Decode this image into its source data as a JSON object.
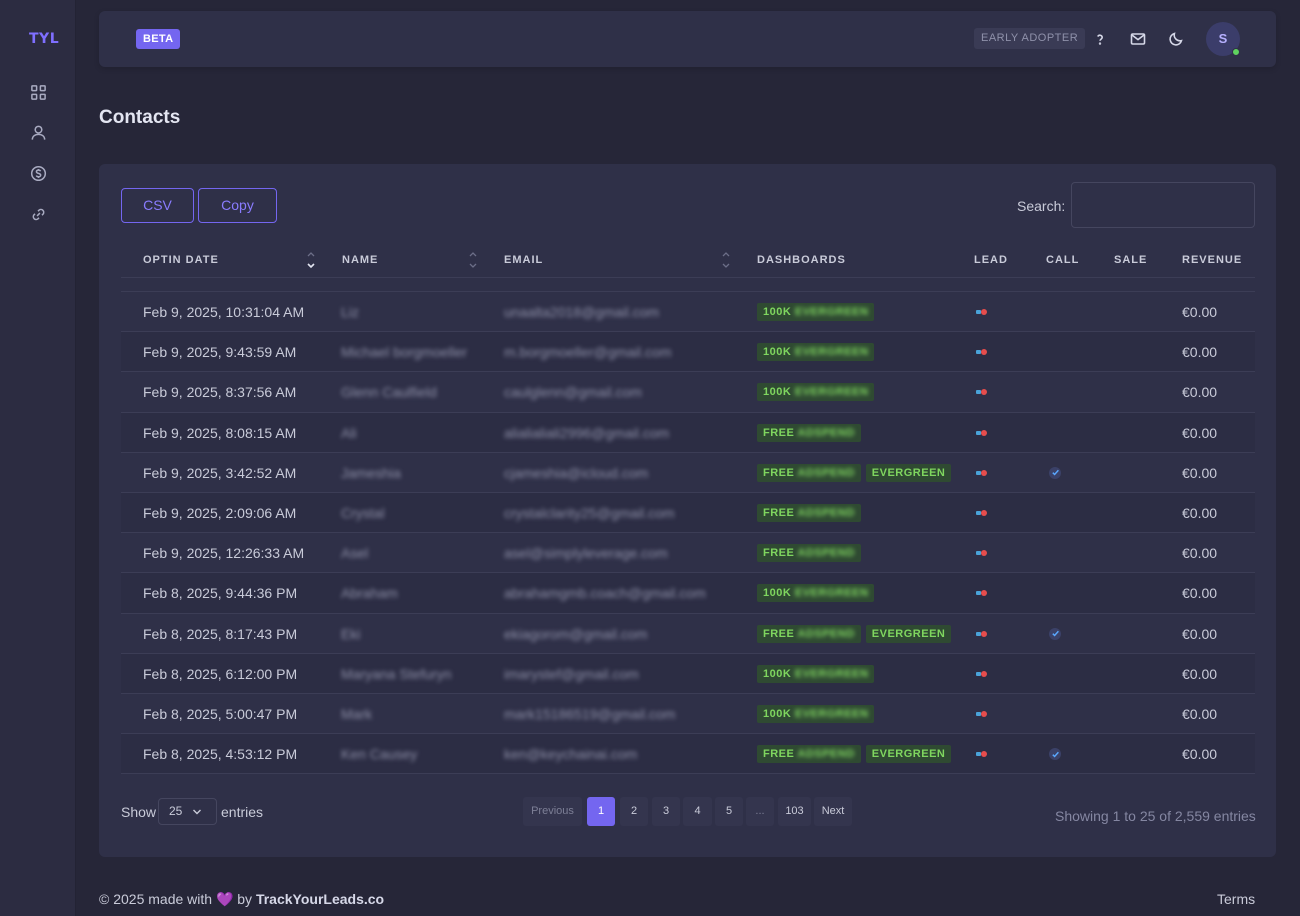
{
  "app": {
    "logo": "TYL"
  },
  "topbar": {
    "beta": "BETA",
    "early_adopter": "EARLY ADOPTER",
    "avatar_initial": "S"
  },
  "page": {
    "title": "Contacts"
  },
  "toolbar": {
    "csv_label": "CSV",
    "copy_label": "Copy",
    "search_label": "Search:",
    "search_value": ""
  },
  "table": {
    "columns": [
      "OPTIN DATE",
      "NAME",
      "EMAIL",
      "DASHBOARDS",
      "LEAD",
      "CALL",
      "SALE",
      "REVENUE"
    ],
    "rows": [
      {
        "date": "Feb 9, 2025, 10:31:04 AM",
        "name": "Liz",
        "email": "unaalta2018@gmail.com",
        "tag1": "100K",
        "tag1_blur": "EVERGREEN",
        "tag2": "",
        "call": false,
        "revenue": "€0.00"
      },
      {
        "date": "Feb 9, 2025, 9:43:59 AM",
        "name": "Michael borgmoeller",
        "email": "m.borgmoeller@gmail.com",
        "tag1": "100K",
        "tag1_blur": "EVERGREEN",
        "tag2": "",
        "call": false,
        "revenue": "€0.00"
      },
      {
        "date": "Feb 9, 2025, 8:37:56 AM",
        "name": "Glenn Caulfield",
        "email": "caulglenn@gmail.com",
        "tag1": "100K",
        "tag1_blur": "EVERGREEN",
        "tag2": "",
        "call": false,
        "revenue": "€0.00"
      },
      {
        "date": "Feb 9, 2025, 8:08:15 AM",
        "name": "Ali",
        "email": "alialialiali2996@gmail.com",
        "tag1": "FREE",
        "tag1_blur": "ADSPEND",
        "tag2": "",
        "call": false,
        "revenue": "€0.00"
      },
      {
        "date": "Feb 9, 2025, 3:42:52 AM",
        "name": "Jameshia",
        "email": "cjameshia@icloud.com",
        "tag1": "FREE",
        "tag1_blur": "ADSPEND",
        "tag2": "EVERGREEN",
        "call": true,
        "revenue": "€0.00"
      },
      {
        "date": "Feb 9, 2025, 2:09:06 AM",
        "name": "Crystal",
        "email": "crystalclarity25@gmail.com",
        "tag1": "FREE",
        "tag1_blur": "ADSPEND",
        "tag2": "",
        "call": false,
        "revenue": "€0.00"
      },
      {
        "date": "Feb 9, 2025, 12:26:33 AM",
        "name": "Asel",
        "email": "asel@simplyleverage.com",
        "tag1": "FREE",
        "tag1_blur": "ADSPEND",
        "tag2": "",
        "call": false,
        "revenue": "€0.00"
      },
      {
        "date": "Feb 8, 2025, 9:44:36 PM",
        "name": "Abraham",
        "email": "abrahamgmb.coach@gmail.com",
        "tag1": "100K",
        "tag1_blur": "EVERGREEN",
        "tag2": "",
        "call": false,
        "revenue": "€0.00"
      },
      {
        "date": "Feb 8, 2025, 8:17:43 PM",
        "name": "Eki",
        "email": "ekiagorom@gmail.com",
        "tag1": "FREE",
        "tag1_blur": "ADSPEND",
        "tag2": "EVERGREEN",
        "call": true,
        "revenue": "€0.00"
      },
      {
        "date": "Feb 8, 2025, 6:12:00 PM",
        "name": "Maryana Stefuryn",
        "email": "imarystef@gmail.com",
        "tag1": "100K",
        "tag1_blur": "EVERGREEN",
        "tag2": "",
        "call": false,
        "revenue": "€0.00"
      },
      {
        "date": "Feb 8, 2025, 5:00:47 PM",
        "name": "Mark",
        "email": "mark15186519@gmail.com",
        "tag1": "100K",
        "tag1_blur": "EVERGREEN",
        "tag2": "",
        "call": false,
        "revenue": "€0.00"
      },
      {
        "date": "Feb 8, 2025, 4:53:12 PM",
        "name": "Ken Causey",
        "email": "ken@keychainai.com",
        "tag1": "FREE",
        "tag1_blur": "ADSPEND",
        "tag2": "EVERGREEN",
        "call": true,
        "revenue": "€0.00"
      }
    ]
  },
  "pagination": {
    "show": "Show",
    "entries": "entries",
    "page_size": "25",
    "previous": "Previous",
    "pages": [
      "1",
      "2",
      "3",
      "4",
      "5",
      "...",
      "103"
    ],
    "next": "Next",
    "showing": "Showing 1 to 25 of 2,559 entries"
  },
  "footer": {
    "copyright": "© 2025 made with",
    "heart": "💜",
    "by": "by",
    "brand": "TrackYourLeads.co",
    "terms": "Terms"
  },
  "colors": {
    "accent": "#7466f0",
    "tag_bg": "#2f4a32",
    "tag_text": "#7fd65f",
    "online": "#5fd35f"
  }
}
